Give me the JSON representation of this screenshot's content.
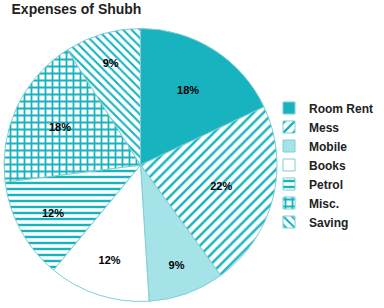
{
  "chart_data": {
    "type": "pie",
    "title": "Expenses of Shubh",
    "categories": [
      "Room Rent",
      "Mess",
      "Mobile",
      "Books",
      "Petrol",
      "Misc.",
      "Saving"
    ],
    "values": [
      18,
      22,
      9,
      12,
      12,
      18,
      9
    ],
    "value_labels": [
      "18%",
      "22%",
      "9%",
      "12%",
      "12%",
      "18%",
      "9%"
    ],
    "colors": [
      "#17b3bf",
      "#17b3bf",
      "#a6e3e8",
      "#ffffff",
      "#17b3bf",
      "#17b3bf",
      "#17b3bf"
    ],
    "data_labels": true,
    "legend": "right"
  }
}
